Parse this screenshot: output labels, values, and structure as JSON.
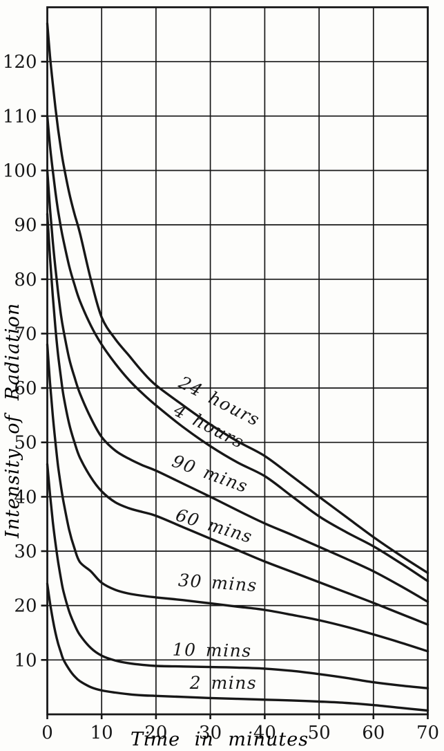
{
  "figure": {
    "description": "Decay of radiation intensity after exposures of different durations",
    "background": "#fdfdfb"
  },
  "chart_data": {
    "type": "line",
    "title": "",
    "xlabel": "Time in minutes",
    "ylabel": "Intensity of Radiation",
    "xlim": [
      0,
      70
    ],
    "ylim": [
      0,
      130
    ],
    "x_ticks": [
      0,
      10,
      20,
      30,
      40,
      50,
      60,
      70
    ],
    "y_ticks": [
      10,
      20,
      30,
      40,
      50,
      60,
      70,
      80,
      90,
      100,
      110,
      120
    ],
    "grid": "both axes, every 10 units, full frame border",
    "legend_position": "inline labels along curves",
    "ink_color": "#171717",
    "x": [
      0,
      0.5,
      1,
      1.5,
      2,
      2.5,
      3,
      4,
      5,
      6,
      8,
      10,
      12.5,
      15,
      17.5,
      20,
      25,
      30,
      35,
      40,
      45,
      50,
      55,
      60,
      65,
      70
    ],
    "series": [
      {
        "name": "24 hours",
        "values": [
          127,
          121,
          116,
          111.5,
          107.5,
          104,
          101,
          96,
          92,
          88.5,
          80,
          73,
          69,
          66,
          63,
          60.5,
          56.8,
          53.3,
          50.2,
          47.5,
          43.8,
          40,
          36.3,
          32.6,
          29.2,
          26
        ],
        "label": {
          "text": "24 hours",
          "t": 31.2,
          "i": 56.6,
          "angle": 27
        }
      },
      {
        "name": "4 hours",
        "values": [
          110,
          104.5,
          100,
          96,
          92.5,
          89.5,
          87,
          82.5,
          79,
          76,
          71.5,
          68,
          64.5,
          61.5,
          59,
          56.8,
          52.8,
          49.3,
          46.3,
          43.8,
          40.1,
          36.4,
          33.5,
          30.9,
          27.8,
          24.5
        ],
        "label": {
          "text": "4 hours",
          "t": 29.3,
          "i": 52.0,
          "angle": 27
        }
      },
      {
        "name": "90 mins",
        "values": [
          100,
          93,
          87,
          82,
          77.5,
          73.5,
          70.5,
          65.5,
          62,
          59,
          54.5,
          51,
          48.5,
          47,
          45.8,
          44.8,
          42.4,
          40,
          37.5,
          35.1,
          33,
          30.8,
          28.6,
          26.3,
          23.6,
          20.7
        ],
        "label": {
          "text": "90 mins",
          "t": 29.6,
          "i": 43.2,
          "angle": 20
        }
      },
      {
        "name": "60 mins",
        "values": [
          92,
          84,
          77,
          71,
          66,
          62,
          58.5,
          53.5,
          50,
          47.2,
          43.6,
          41,
          39,
          37.9,
          37.2,
          36.5,
          34.4,
          32.3,
          30.2,
          28.1,
          26.2,
          24.3,
          22.4,
          20.5,
          18.5,
          16.5
        ],
        "label": {
          "text": "60 mins",
          "t": 30.4,
          "i": 33.6,
          "angle": 17
        }
      },
      {
        "name": "30 mins",
        "values": [
          68,
          61,
          55,
          50,
          45.5,
          42,
          39,
          34,
          30.5,
          28,
          26.3,
          24.2,
          22.9,
          22.2,
          21.8,
          21.5,
          21,
          20.4,
          19.8,
          19.2,
          18.3,
          17.3,
          16.1,
          14.7,
          13.2,
          11.6
        ],
        "label": {
          "text": "30 mins",
          "t": 31.3,
          "i": 23.1,
          "angle": 4
        }
      },
      {
        "name": "10 mins",
        "values": [
          46,
          40.5,
          35.5,
          31.5,
          28,
          25,
          22.5,
          19,
          16.5,
          14.6,
          12.2,
          10.8,
          9.9,
          9.4,
          9.1,
          8.9,
          8.8,
          8.7,
          8.6,
          8.4,
          8,
          7.4,
          6.7,
          5.9,
          5.3,
          4.8
        ],
        "label": {
          "text": "10 mins",
          "t": 30.3,
          "i": 10.7,
          "angle": 1
        }
      },
      {
        "name": "2 mins",
        "values": [
          24,
          20.5,
          17.5,
          15,
          13,
          11.4,
          10,
          8.3,
          7,
          6.1,
          5,
          4.4,
          4,
          3.7,
          3.5,
          3.4,
          3.2,
          3,
          2.85,
          2.7,
          2.55,
          2.35,
          2.1,
          1.7,
          1.2,
          0.7
        ],
        "label": {
          "text": "2 mins",
          "t": 32.4,
          "i": 4.7,
          "angle": 0
        }
      }
    ]
  }
}
